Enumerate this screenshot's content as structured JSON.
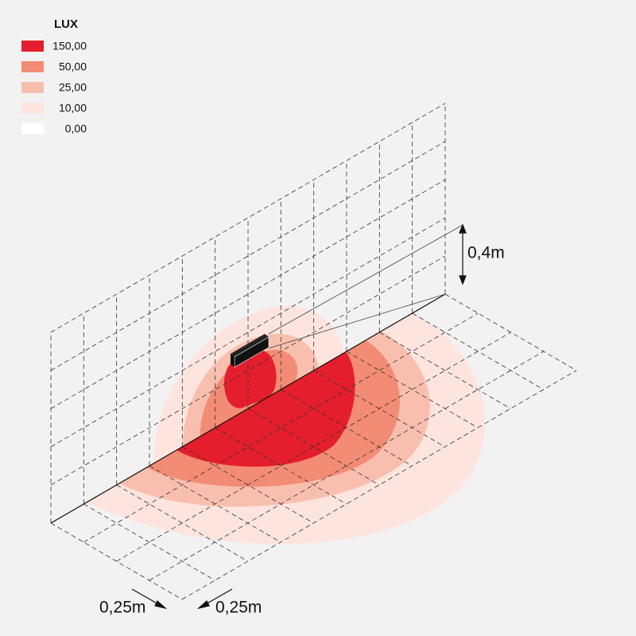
{
  "legend": {
    "title": "LUX",
    "items": [
      {
        "label": "150,00",
        "color": "#e41e2d"
      },
      {
        "label": "50,00",
        "color": "#f28c74"
      },
      {
        "label": "25,00",
        "color": "#f9bfae"
      },
      {
        "label": "10,00",
        "color": "#fde4df"
      },
      {
        "label": "0,00",
        "color": "#ffffff"
      }
    ]
  },
  "dimensions": {
    "height": "0,4m",
    "width_left": "0,25m",
    "width_right": "0,25m"
  }
}
